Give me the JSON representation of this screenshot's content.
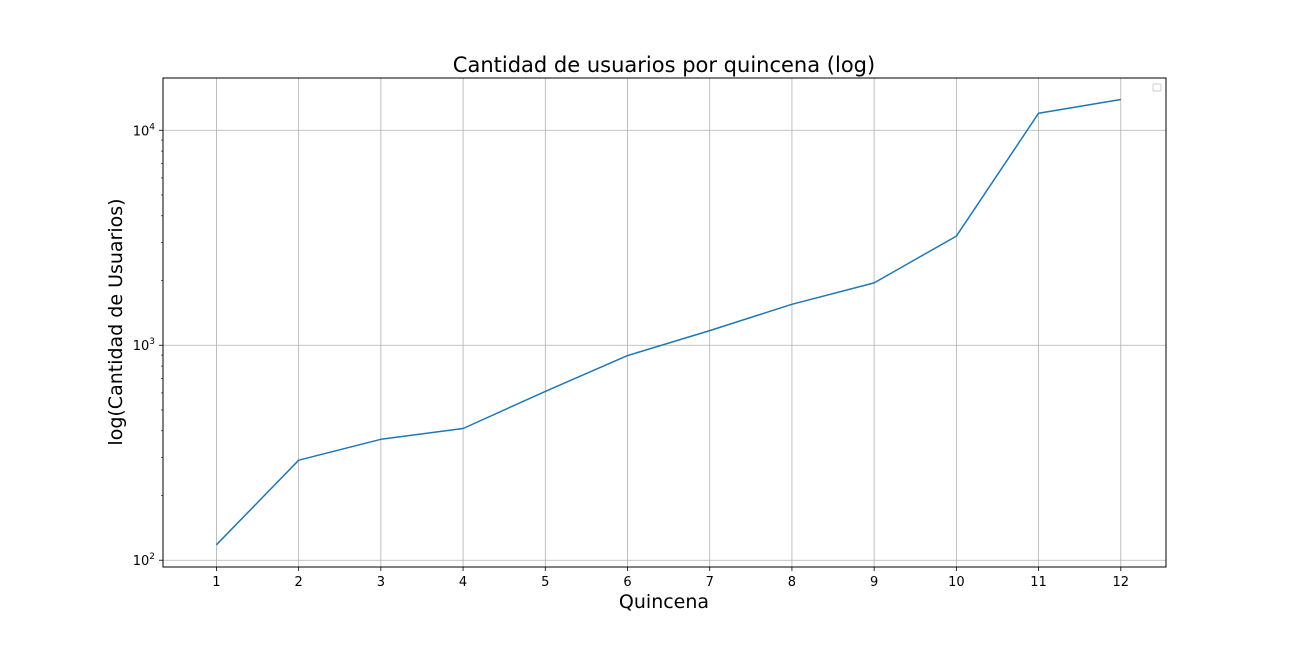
{
  "chart_data": {
    "type": "line",
    "title": "Cantidad de usuarios por quincena (log)",
    "xlabel": "Quincena",
    "ylabel": "log(Cantidad de Usuarios)",
    "yscale": "log",
    "grid": true,
    "legend": "top-right, empty",
    "x": [
      1,
      2,
      3,
      4,
      5,
      6,
      7,
      8,
      9,
      10,
      11,
      12
    ],
    "xticks": [
      "1",
      "2",
      "3",
      "4",
      "5",
      "6",
      "7",
      "8",
      "9",
      "10",
      "11",
      "12"
    ],
    "xlim": [
      0.35,
      12.55
    ],
    "ylim": [
      93,
      17500
    ],
    "yticks": [
      {
        "value": 100,
        "base": "10",
        "exp": "2"
      },
      {
        "value": 1000,
        "base": "10",
        "exp": "3"
      },
      {
        "value": 10000,
        "base": "10",
        "exp": "4"
      }
    ],
    "series": [
      {
        "color": "#1f77b4",
        "values": [
          118,
          292,
          365,
          410,
          610,
          895,
          1170,
          1550,
          1950,
          3220,
          12000,
          13900
        ]
      }
    ]
  }
}
